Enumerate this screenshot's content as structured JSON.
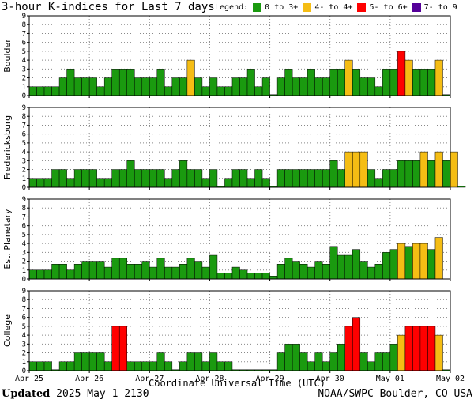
{
  "header": {
    "title": "3-hour K-indices for Last 7 days",
    "legend_label": "Legend:",
    "legend": [
      {
        "label": "0 to 3+",
        "color": "#1a9a0f"
      },
      {
        "label": "4- to 4+",
        "color": "#f5bd14"
      },
      {
        "label": "5- to 6+",
        "color": "#ff0000"
      },
      {
        "label": "7- to 9",
        "color": "#550099"
      }
    ]
  },
  "footer": {
    "updated_label": "Updated",
    "updated_value": "2025 May  1 2130",
    "credit": "NOAA/SWPC Boulder, CO USA"
  },
  "chart_data": {
    "type": "bar",
    "xlabel": "Coordinate Universal Time (UTC)",
    "x_ticks": [
      "Apr 25",
      "Apr 26",
      "Apr 27",
      "Apr 28",
      "Apr 29",
      "Apr 30",
      "May 01",
      "May 02"
    ],
    "y_ticks": [
      0,
      1,
      2,
      3,
      4,
      5,
      6,
      7,
      8,
      9
    ],
    "ylim": [
      0,
      9
    ],
    "bins_per_day": 8,
    "grid": true,
    "panels": [
      {
        "name": "Boulder",
        "values": [
          1,
          1,
          1,
          1,
          2,
          3,
          2,
          2,
          2,
          1,
          2,
          3,
          3,
          3,
          2,
          2,
          2,
          3,
          1,
          2,
          2,
          4,
          2,
          1,
          2,
          1,
          1,
          2,
          2,
          3,
          1,
          2,
          0,
          2,
          3,
          2,
          2,
          3,
          2,
          2,
          3,
          3,
          4,
          3,
          2,
          2,
          1,
          3,
          3,
          5,
          4,
          3,
          3,
          3,
          4,
          0
        ]
      },
      {
        "name": "Fredericksburg",
        "values": [
          1,
          1,
          1,
          2,
          2,
          1,
          2,
          2,
          2,
          1,
          1,
          2,
          2,
          3,
          2,
          2,
          2,
          2,
          1,
          2,
          3,
          2,
          2,
          1,
          2,
          0,
          1,
          2,
          2,
          1,
          2,
          1,
          0,
          2,
          2,
          2,
          2,
          2,
          2,
          2,
          3,
          2,
          4,
          4,
          4,
          2,
          1,
          2,
          2,
          3,
          3,
          3,
          4,
          3,
          4,
          3,
          4,
          0
        ]
      },
      {
        "name": "Est. Planetary",
        "values": [
          1,
          1,
          1,
          1.67,
          1.67,
          1,
          1.67,
          2,
          2,
          2,
          1.33,
          2.33,
          2.33,
          1.67,
          1.67,
          2,
          1.33,
          2.33,
          1.33,
          1.33,
          1.67,
          2.33,
          2,
          1.33,
          2.67,
          0.67,
          0.67,
          1.33,
          1,
          0.67,
          0.67,
          0.67,
          0.33,
          1.67,
          2.33,
          2,
          1.67,
          1.33,
          2,
          1.67,
          3.67,
          2.67,
          2.67,
          3.33,
          2,
          1.33,
          1.67,
          3,
          3.33,
          4,
          3.67,
          4,
          4,
          3.33,
          4.67
        ]
      },
      {
        "name": "College",
        "values": [
          1,
          1,
          1,
          0,
          1,
          1,
          2,
          2,
          2,
          2,
          1,
          5,
          5,
          1,
          1,
          1,
          1,
          2,
          1,
          0,
          1,
          2,
          2,
          1,
          2,
          1,
          1,
          0,
          0,
          0,
          0,
          0,
          0,
          2,
          3,
          3,
          2,
          1,
          2,
          1,
          2,
          3,
          5,
          6,
          2,
          1,
          2,
          2,
          3,
          4,
          5,
          5,
          5,
          5,
          4,
          0
        ]
      }
    ]
  }
}
